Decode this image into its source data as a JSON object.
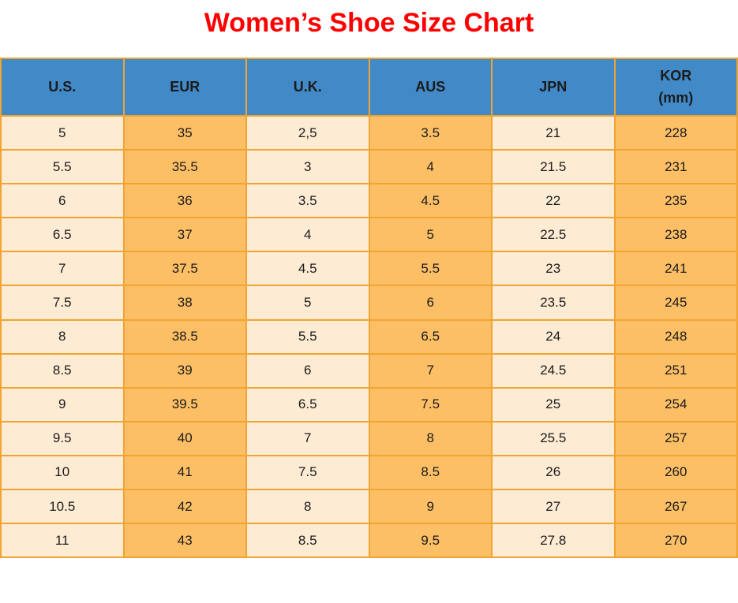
{
  "page": {
    "title": "Women’s Shoe Size Chart"
  },
  "colors": {
    "title_red": "#FF0000",
    "header_blue": "#4289C7",
    "cell_cream": "#FDEBD3",
    "cell_orange": "#FDBF66",
    "grid_orange": "#F0A432",
    "text_dark": "#1B1B1B"
  },
  "table": {
    "headers": [
      {
        "label": "U.S."
      },
      {
        "label": "EUR"
      },
      {
        "label": "U.K."
      },
      {
        "label": "AUS"
      },
      {
        "label": "JPN"
      },
      {
        "label": "KOR",
        "sub": "(mm)"
      }
    ],
    "col_keys": [
      "us",
      "eur",
      "uk",
      "aus",
      "jpn",
      "kor"
    ]
  },
  "chart_data": {
    "type": "table",
    "title": "Women’s Shoe Size Chart",
    "columns": [
      "U.S.",
      "EUR",
      "U.K.",
      "AUS",
      "JPN",
      "KOR (mm)"
    ],
    "rows": [
      [
        "5",
        "35",
        "2,5",
        "3.5",
        "21",
        "228"
      ],
      [
        "5.5",
        "35.5",
        "3",
        "4",
        "21.5",
        "231"
      ],
      [
        "6",
        "36",
        "3.5",
        "4.5",
        "22",
        "235"
      ],
      [
        "6.5",
        "37",
        "4",
        "5",
        "22.5",
        "238"
      ],
      [
        "7",
        "37.5",
        "4.5",
        "5.5",
        "23",
        "241"
      ],
      [
        "7.5",
        "38",
        "5",
        "6",
        "23.5",
        "245"
      ],
      [
        "8",
        "38.5",
        "5.5",
        "6.5",
        "24",
        "248"
      ],
      [
        "8.5",
        "39",
        "6",
        "7",
        "24.5",
        "251"
      ],
      [
        "9",
        "39.5",
        "6.5",
        "7.5",
        "25",
        "254"
      ],
      [
        "9.5",
        "40",
        "7",
        "8",
        "25.5",
        "257"
      ],
      [
        "10",
        "41",
        "7.5",
        "8.5",
        "26",
        "260"
      ],
      [
        "10.5",
        "42",
        "8",
        "9",
        "27",
        "267"
      ],
      [
        "11",
        "43",
        "8.5",
        "9.5",
        "27.8",
        "270"
      ]
    ]
  }
}
